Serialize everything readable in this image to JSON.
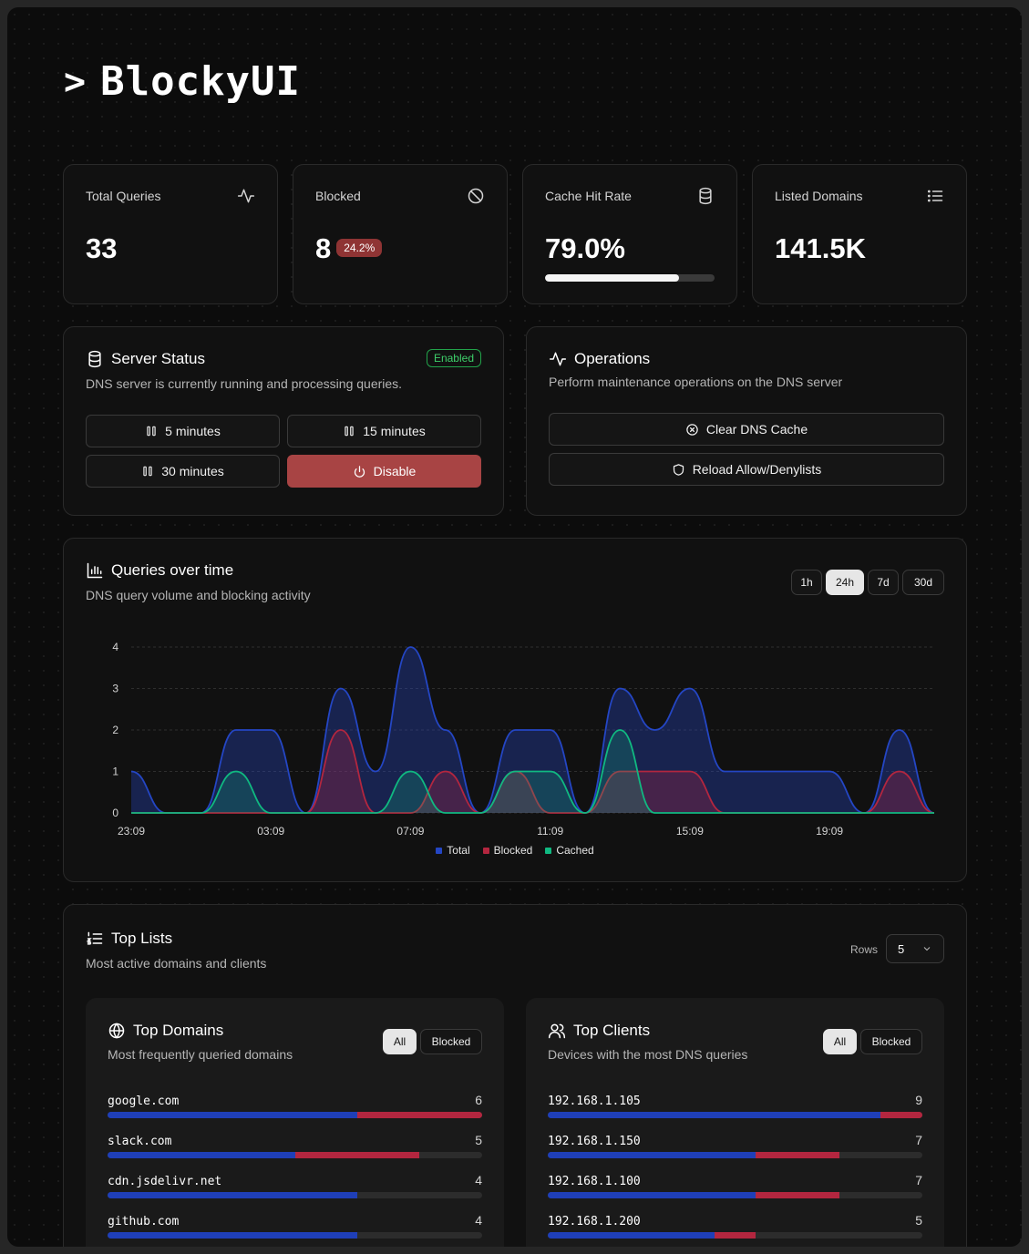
{
  "app": {
    "logo_caret": ">",
    "logo_text": "BlockyUI"
  },
  "stats": [
    {
      "label": "Total Queries",
      "value": "33",
      "icon": "activity-icon"
    },
    {
      "label": "Blocked",
      "value": "8",
      "badge": "24.2%",
      "icon": "ban-icon"
    },
    {
      "label": "Cache Hit Rate",
      "value": "79.0%",
      "progress": 0.79,
      "icon": "database-icon"
    },
    {
      "label": "Listed Domains",
      "value": "141.5K",
      "icon": "list-icon"
    }
  ],
  "server_status": {
    "title": "Server Status",
    "badge": "Enabled",
    "description": "DNS server is currently running and processing queries.",
    "pause_5": "5 minutes",
    "pause_15": "15 minutes",
    "pause_30": "30 minutes",
    "disable": "Disable"
  },
  "operations": {
    "title": "Operations",
    "description": "Perform maintenance operations on the DNS server",
    "clear_cache": "Clear DNS Cache",
    "reload_lists": "Reload Allow/Denylists"
  },
  "queries_chart": {
    "title": "Queries over time",
    "description": "DNS query volume and blocking activity",
    "ranges": [
      "1h",
      "24h",
      "7d",
      "30d"
    ],
    "active_range": "24h"
  },
  "chart_data": {
    "type": "area",
    "x": [
      "23:09",
      "00:09",
      "01:09",
      "02:09",
      "03:09",
      "04:09",
      "05:09",
      "06:09",
      "07:09",
      "08:09",
      "09:09",
      "10:09",
      "11:09",
      "12:09",
      "13:09",
      "14:09",
      "15:09",
      "16:09",
      "17:09",
      "18:09",
      "19:09",
      "20:09",
      "21:09",
      "22:09"
    ],
    "xticks": [
      "23:09",
      "03:09",
      "07:09",
      "11:09",
      "15:09",
      "19:09"
    ],
    "ylim": [
      0,
      4
    ],
    "yticks": [
      0,
      1,
      2,
      3,
      4
    ],
    "grid": true,
    "legend": "bottom",
    "series": [
      {
        "name": "Total",
        "color": "#2446c4",
        "values": [
          1,
          0,
          0,
          2,
          2,
          0,
          3,
          1,
          4,
          2,
          0,
          2,
          2,
          0,
          3,
          2,
          3,
          1,
          1,
          1,
          1,
          0,
          2,
          0
        ]
      },
      {
        "name": "Blocked",
        "color": "#b3263f",
        "values": [
          0,
          0,
          0,
          0,
          0,
          0,
          2,
          0,
          0,
          1,
          0,
          1,
          0,
          0,
          1,
          1,
          1,
          0,
          0,
          0,
          0,
          0,
          1,
          0
        ]
      },
      {
        "name": "Cached",
        "color": "#10b981",
        "values": [
          0,
          0,
          0,
          1,
          0,
          0,
          0,
          0,
          1,
          0,
          0,
          1,
          1,
          0,
          2,
          0,
          0,
          0,
          0,
          0,
          0,
          0,
          0,
          0
        ]
      }
    ]
  },
  "top_lists": {
    "title": "Top Lists",
    "description": "Most active domains and clients",
    "rows_label": "Rows",
    "rows_value": "5",
    "domains": {
      "title": "Top Domains",
      "description": "Most frequently queried domains",
      "filter_all": "All",
      "filter_blocked": "Blocked",
      "items": [
        {
          "name": "google.com",
          "count": "6",
          "total": 6,
          "blocked": 2
        },
        {
          "name": "slack.com",
          "count": "5",
          "total": 5,
          "blocked": 2
        },
        {
          "name": "cdn.jsdelivr.net",
          "count": "4",
          "total": 4,
          "blocked": 0
        },
        {
          "name": "github.com",
          "count": "4",
          "total": 4,
          "blocked": 0
        }
      ]
    },
    "clients": {
      "title": "Top Clients",
      "description": "Devices with the most DNS queries",
      "filter_all": "All",
      "filter_blocked": "Blocked",
      "items": [
        {
          "name": "192.168.1.105",
          "count": "9",
          "total": 9,
          "blocked": 1
        },
        {
          "name": "192.168.1.150",
          "count": "7",
          "total": 7,
          "blocked": 2
        },
        {
          "name": "192.168.1.100",
          "count": "7",
          "total": 7,
          "blocked": 2
        },
        {
          "name": "192.168.1.200",
          "count": "5",
          "total": 5,
          "blocked": 1
        }
      ]
    }
  }
}
